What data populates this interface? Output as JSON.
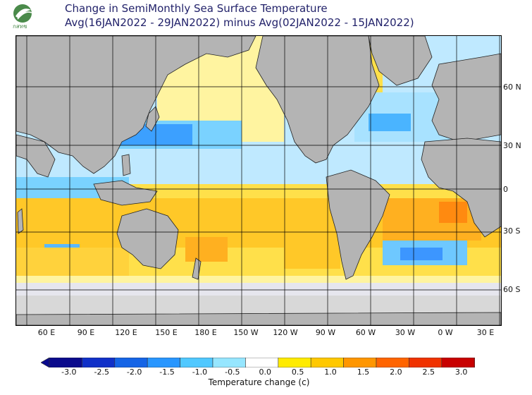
{
  "logo": {
    "text": "กสทช",
    "color": "#4a8a4a"
  },
  "title": {
    "line1": "Change in SemiMonthly Sea Surface Temperature",
    "line2": "Avg(16JAN2022 - 29JAN2022) minus Avg(02JAN2022 - 15JAN2022)"
  },
  "map": {
    "lat_labels": [
      "60 N",
      "30 N",
      "0",
      "30 S",
      "60 S"
    ],
    "lon_labels": [
      "60 E",
      "90 E",
      "120 E",
      "150 E",
      "180 E",
      "150 W",
      "120 W",
      "90 W",
      "60 W",
      "30 W",
      "0 W",
      "30 E"
    ],
    "colors": {
      "land": "#b4b4b4",
      "ice": "#d8d8d8",
      "grid": "#000000"
    }
  },
  "colorbar": {
    "ticks": [
      "-3.0",
      "-2.5",
      "-2.0",
      "-1.5",
      "-1.0",
      "-0.5",
      "0.0",
      "0.5",
      "1.0",
      "1.5",
      "2.0",
      "2.5",
      "3.0"
    ],
    "colors": [
      "#0a0a8c",
      "#1030c8",
      "#1464e6",
      "#2896ff",
      "#50c8ff",
      "#96e6ff",
      "#ffffff",
      "#ffeb00",
      "#ffc800",
      "#ff9600",
      "#ff6400",
      "#f03200",
      "#c80000"
    ],
    "label": "Temperature change  (c)"
  }
}
